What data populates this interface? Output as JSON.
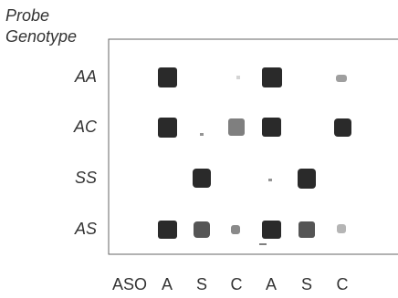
{
  "header": {
    "line1": "Probe",
    "line2": "Genotype"
  },
  "rows": [
    "AA",
    "AC",
    "SS",
    "AS"
  ],
  "columns": {
    "label": "ASO",
    "items": [
      "A",
      "S",
      "C",
      "A",
      "S",
      "C"
    ]
  }
}
